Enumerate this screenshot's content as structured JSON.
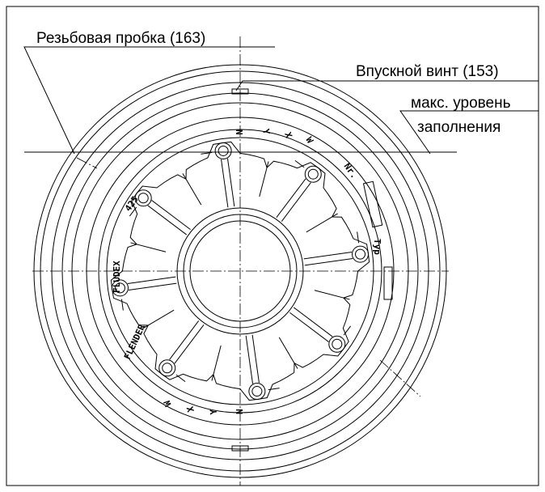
{
  "labels": {
    "threaded_plug": "Резьбовая пробка (163)",
    "inlet_screw": "Впускной винт (153)",
    "max_level": [
      "макс. уровень",
      "заполнения"
    ]
  },
  "engravings": {
    "brand": "FLENDER",
    "product": "FLUDEX",
    "size": "425",
    "type": "Typ",
    "number": "Nr.",
    "top_marks": [
      "N",
      "Y",
      "X",
      "W"
    ],
    "bottom_marks": [
      "W",
      "X",
      "Y",
      "N"
    ]
  }
}
